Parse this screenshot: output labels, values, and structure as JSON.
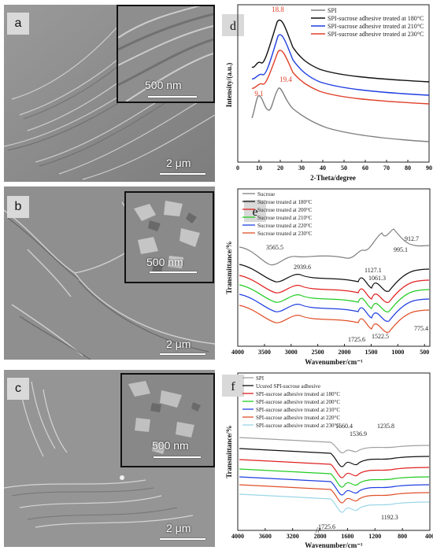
{
  "sem_panels": [
    {
      "label": "a",
      "inset_scale": "500 nm",
      "main_scale": "2 μm"
    },
    {
      "label": "b",
      "inset_scale": "500 nm",
      "main_scale": "2 μm"
    },
    {
      "label": "c",
      "inset_scale": "500 nm",
      "main_scale": "2 μm"
    }
  ],
  "chart_data": [
    {
      "panel_label": "d",
      "type": "line",
      "xlabel": "2-Theta/degree",
      "ylabel": "Intensity/(a.u.)",
      "xlim": [
        0,
        90
      ],
      "xticks": [
        0,
        10,
        20,
        30,
        40,
        50,
        60,
        70,
        80,
        90
      ],
      "legend_position": "top-right",
      "series": [
        {
          "name": "SPI",
          "color": "#808080"
        },
        {
          "name": "SPI-sucrose adhesive treated at 180°C",
          "color": "#111111"
        },
        {
          "name": "SPI-sucrose adhesive treated at 210°C",
          "color": "#1f3fe0"
        },
        {
          "name": "SPI-sucrose adhesive treated at 230°C",
          "color": "#e0402a"
        }
      ],
      "annotations": [
        {
          "text": "18.8",
          "x": 18.8,
          "color": "#e0402a"
        },
        {
          "text": "19.4",
          "x": 19.4,
          "color": "#e0402a"
        },
        {
          "text": "9.1",
          "x": 9.1,
          "color": "#e0402a"
        }
      ]
    },
    {
      "panel_label": "e",
      "type": "line",
      "xlabel": "Wavenumber/cm⁻¹",
      "ylabel": "Transmittance/%",
      "xlim": [
        4000,
        400
      ],
      "xticks": [
        4000,
        3500,
        3000,
        2500,
        2000,
        1500,
        1000,
        500
      ],
      "legend_position": "top-left",
      "series": [
        {
          "name": "Sucrose",
          "color": "#808080"
        },
        {
          "name": "Sucrose treated at 180°C",
          "color": "#111111"
        },
        {
          "name": "Sucrose treated at 200°C",
          "color": "#e02020"
        },
        {
          "name": "Sucrose treated at 210°C",
          "color": "#22cc22"
        },
        {
          "name": "Sucrose treated at 220°C",
          "color": "#1f3fe0"
        },
        {
          "name": "Sucrose treated at 230°C",
          "color": "#e0502a"
        }
      ],
      "annotations": [
        {
          "text": "3565.5",
          "x": 3565.5
        },
        {
          "text": "2939.6",
          "x": 2939.6
        },
        {
          "text": "1127.1",
          "x": 1127.1
        },
        {
          "text": "1061.3",
          "x": 1061.3
        },
        {
          "text": "995.1",
          "x": 995.1
        },
        {
          "text": "912.7",
          "x": 912.7
        },
        {
          "text": "1725.6",
          "x": 1725.6
        },
        {
          "text": "1522.5",
          "x": 1522.5
        },
        {
          "text": "775.4",
          "x": 775.4
        }
      ]
    },
    {
      "panel_label": "f",
      "type": "line",
      "xlabel": "Wavenumber/cm⁻¹",
      "ylabel": "Transmittance/%",
      "xlim": [
        4000,
        400
      ],
      "xticks": [
        4000,
        3600,
        3200,
        2800,
        1600,
        1200,
        800,
        400
      ],
      "axis_break": "≈2600–2000 (//)",
      "legend_position": "top-left",
      "series": [
        {
          "name": "SPI",
          "color": "#a0a0a0"
        },
        {
          "name": "Ucured SPI-sucrose adhesive",
          "color": "#111111"
        },
        {
          "name": "SPI-sucrose adhesive treated at 180°C",
          "color": "#e02020"
        },
        {
          "name": "SPI-sucrose adhesive treated at 200°C",
          "color": "#22cc22"
        },
        {
          "name": "SPI-sucrose adhesive treated at 210°C",
          "color": "#1f3fe0"
        },
        {
          "name": "SPI-sucrose adhesive treated at 220°C",
          "color": "#e0502a"
        },
        {
          "name": "SPI-sucrose adhesive treated at 230°C",
          "color": "#9ad6e8"
        }
      ],
      "annotations": [
        {
          "text": "1660.4",
          "x": 1660.4
        },
        {
          "text": "1536.9",
          "x": 1536.9
        },
        {
          "text": "1235.8",
          "x": 1235.8
        },
        {
          "text": "1725.6",
          "x": 1725.6
        },
        {
          "text": "1192.3",
          "x": 1192.3
        }
      ]
    }
  ]
}
